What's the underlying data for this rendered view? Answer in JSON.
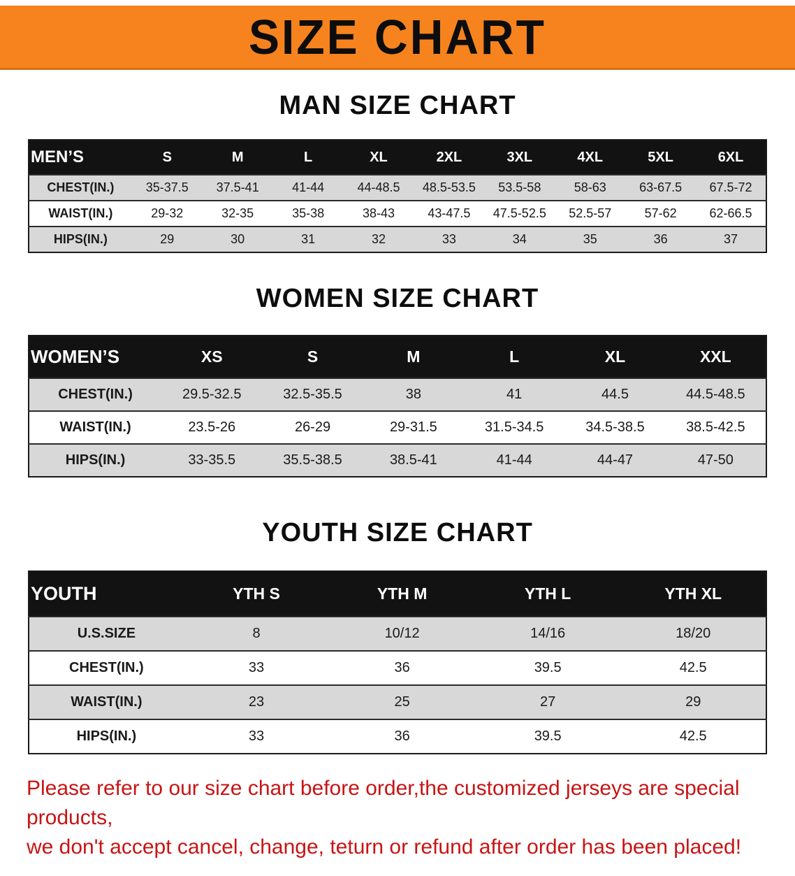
{
  "banner": {
    "title": "SIZE CHART",
    "bg_color": "#f6831e"
  },
  "colors": {
    "header_bg": "#121212",
    "stripe_gray": "#d8d8d8",
    "notice_red": "#c81414"
  },
  "sections": [
    {
      "heading": "MAN SIZE CHART",
      "table": {
        "corner": "MEN’S",
        "columns": [
          "S",
          "M",
          "L",
          "XL",
          "2XL",
          "3XL",
          "4XL",
          "5XL",
          "6XL"
        ],
        "rows": [
          {
            "label": "CHEST(IN.)",
            "values": [
              "35-37.5",
              "37.5-41",
              "41-44",
              "44-48.5",
              "48.5-53.5",
              "53.5-58",
              "58-63",
              "63-67.5",
              "67.5-72"
            ]
          },
          {
            "label": "WAIST(IN.)",
            "values": [
              "29-32",
              "32-35",
              "35-38",
              "38-43",
              "43-47.5",
              "47.5-52.5",
              "52.5-57",
              "57-62",
              "62-66.5"
            ]
          },
          {
            "label": "HIPS(IN.)",
            "values": [
              "29",
              "30",
              "31",
              "32",
              "33",
              "34",
              "35",
              "36",
              "37"
            ]
          }
        ]
      }
    },
    {
      "heading": "WOMEN SIZE CHART",
      "table": {
        "corner": "WOMEN’S",
        "columns": [
          "XS",
          "S",
          "M",
          "L",
          "XL",
          "XXL"
        ],
        "rows": [
          {
            "label": "CHEST(IN.)",
            "values": [
              "29.5-32.5",
              "32.5-35.5",
              "38",
              "41",
              "44.5",
              "44.5-48.5"
            ]
          },
          {
            "label": "WAIST(IN.)",
            "values": [
              "23.5-26",
              "26-29",
              "29-31.5",
              "31.5-34.5",
              "34.5-38.5",
              "38.5-42.5"
            ]
          },
          {
            "label": "HIPS(IN.)",
            "values": [
              "33-35.5",
              "35.5-38.5",
              "38.5-41",
              "41-44",
              "44-47",
              "47-50"
            ]
          }
        ]
      }
    },
    {
      "heading": "YOUTH SIZE CHART",
      "table": {
        "corner": "YOUTH",
        "columns": [
          "YTH S",
          "YTH M",
          "YTH L",
          "YTH XL"
        ],
        "rows": [
          {
            "label": "U.S.SIZE",
            "values": [
              "8",
              "10/12",
              "14/16",
              "18/20"
            ]
          },
          {
            "label": "CHEST(IN.)",
            "values": [
              "33",
              "36",
              "39.5",
              "42.5"
            ]
          },
          {
            "label": "WAIST(IN.)",
            "values": [
              "23",
              "25",
              "27",
              "29"
            ]
          },
          {
            "label": "HIPS(IN.)",
            "values": [
              "33",
              "36",
              "39.5",
              "42.5"
            ]
          }
        ]
      }
    }
  ],
  "footer": {
    "line1": "Please refer to our size chart before order,the customized jerseys are special products,",
    "line2": "we don't accept cancel, change, teturn or refund after order has been placed!"
  }
}
